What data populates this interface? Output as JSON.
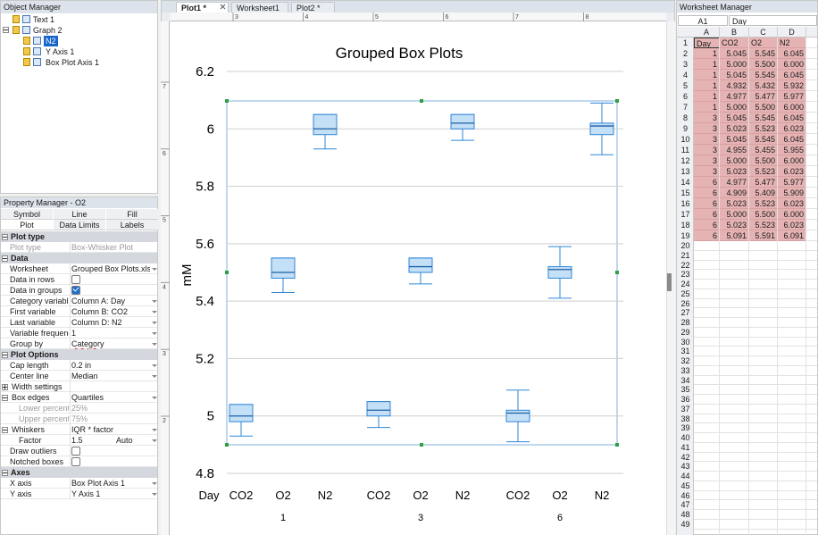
{
  "object_manager": {
    "title": "Object Manager",
    "items": [
      {
        "label": "Text 1"
      },
      {
        "label": "Graph 2",
        "children": [
          {
            "label": "N2",
            "selected": true
          },
          {
            "label": "Y Axis 1"
          },
          {
            "label": "Box Plot Axis 1"
          }
        ]
      }
    ]
  },
  "property_manager": {
    "title": "Property Manager - O2",
    "tabs": [
      [
        "Symbol",
        "Line",
        "Fill"
      ],
      [
        "Plot",
        "Data Limits",
        "Labels"
      ]
    ],
    "active_tab": "Plot",
    "sections": [
      {
        "title": "Plot type",
        "rows": [
          {
            "label": "Plot type",
            "value": "Box-Whisker Plot",
            "disabled": true
          }
        ]
      },
      {
        "title": "Data",
        "rows": [
          {
            "label": "Worksheet",
            "value": "Grouped Box Plots.xlsx!S..."
          },
          {
            "label": "Data in rows",
            "checked": false
          },
          {
            "label": "Data in groups",
            "checked": true
          },
          {
            "label": "Category variable",
            "value": "Column A: Day"
          },
          {
            "label": "First variable",
            "value": "Column B: CO2"
          },
          {
            "label": "Last variable",
            "value": "Column D: N2"
          },
          {
            "label": "Variable frequency",
            "value": "1"
          },
          {
            "label": "Group by",
            "value": "Category"
          }
        ]
      },
      {
        "title": "Plot Options",
        "rows": [
          {
            "label": "Cap length",
            "value": "0.2 in"
          },
          {
            "label": "Center line",
            "value": "Median"
          },
          {
            "label": "Width settings",
            "expanded": false
          },
          {
            "label": "Box edges",
            "value": "Quartiles",
            "expanded": true,
            "children": [
              {
                "label": "Lower percentile",
                "value": "25%",
                "disabled": true
              },
              {
                "label": "Upper percentile",
                "value": "75%",
                "disabled": true
              }
            ]
          },
          {
            "label": "Whiskers",
            "value": "IQR * factor",
            "expanded": true,
            "children": [
              {
                "label": "Factor",
                "value": "1.5",
                "extra": "Auto"
              }
            ]
          },
          {
            "label": "Draw outliers",
            "checked": false
          },
          {
            "label": "Notched boxes",
            "checked": false
          }
        ]
      },
      {
        "title": "Axes",
        "rows": [
          {
            "label": "X axis",
            "value": "Box Plot Axis 1"
          },
          {
            "label": "Y axis",
            "value": "Y Axis 1"
          }
        ]
      }
    ]
  },
  "document_tabs": [
    {
      "label": "Plot1 *",
      "active": true
    },
    {
      "label": "Worksheet1"
    },
    {
      "label": "Plot2 *"
    }
  ],
  "ruler_top": [
    "3",
    "4",
    "5",
    "6",
    "7",
    "8"
  ],
  "ruler_left": [
    "7",
    "6",
    "5",
    "4",
    "3",
    "2"
  ],
  "chart": {
    "type": "box",
    "title": "Grouped Box Plots",
    "y_label": "mM",
    "x_label": "Day",
    "ylim": [
      4.8,
      6.2
    ],
    "yticks": [
      4.8,
      5,
      5.2,
      5.4,
      5.6,
      5.8,
      6,
      6.2
    ],
    "grid": true,
    "color": "#2f86d6",
    "fill": "#c4e0f7",
    "categories": [
      "CO2",
      "O2",
      "N2"
    ],
    "groups": [
      {
        "label": "1",
        "boxes": [
          {
            "min": 4.93,
            "q1": 4.98,
            "median": 5.0,
            "q3": 5.04,
            "max": 5.04
          },
          {
            "min": 5.43,
            "q1": 5.48,
            "median": 5.5,
            "q3": 5.55,
            "max": 5.55
          },
          {
            "min": 5.93,
            "q1": 5.98,
            "median": 6.0,
            "q3": 6.05,
            "max": 6.05
          }
        ]
      },
      {
        "label": "3",
        "boxes": [
          {
            "min": 4.96,
            "q1": 5.0,
            "median": 5.02,
            "q3": 5.05,
            "max": 5.05
          },
          {
            "min": 5.46,
            "q1": 5.5,
            "median": 5.52,
            "q3": 5.55,
            "max": 5.55
          },
          {
            "min": 5.96,
            "q1": 6.0,
            "median": 6.02,
            "q3": 6.05,
            "max": 6.05
          }
        ]
      },
      {
        "label": "6",
        "boxes": [
          {
            "min": 4.91,
            "q1": 4.98,
            "median": 5.01,
            "q3": 5.02,
            "max": 5.09
          },
          {
            "min": 5.41,
            "q1": 5.48,
            "median": 5.51,
            "q3": 5.52,
            "max": 5.59
          },
          {
            "min": 5.91,
            "q1": 5.98,
            "median": 6.01,
            "q3": 6.02,
            "max": 6.09
          }
        ]
      }
    ]
  },
  "worksheet_manager": {
    "title": "Worksheet Manager",
    "cell_ref": "A1",
    "cell_content": "Day",
    "columns": [
      "A",
      "B",
      "C",
      "D"
    ],
    "row_numbers": [
      1,
      2,
      3,
      4,
      5,
      6,
      7,
      8,
      9,
      10,
      11,
      12,
      13,
      14,
      15,
      16,
      17,
      18,
      19,
      20,
      21,
      22,
      23,
      24,
      25,
      26,
      27,
      28,
      29,
      30,
      31,
      32,
      33,
      34,
      35,
      36,
      37,
      38,
      39,
      40,
      41,
      42,
      43,
      44,
      45,
      46,
      47,
      48,
      49
    ],
    "cells": [
      [
        "Day",
        "CO2",
        "O2",
        "N2"
      ],
      [
        "1",
        "5.045",
        "5.545",
        "6.045"
      ],
      [
        "1",
        "5.000",
        "5.500",
        "6.000"
      ],
      [
        "1",
        "5.045",
        "5.545",
        "6.045"
      ],
      [
        "1",
        "4.932",
        "5.432",
        "5.932"
      ],
      [
        "1",
        "4.977",
        "5.477",
        "5.977"
      ],
      [
        "1",
        "5.000",
        "5.500",
        "6.000"
      ],
      [
        "3",
        "5.045",
        "5.545",
        "6.045"
      ],
      [
        "3",
        "5.023",
        "5.523",
        "6.023"
      ],
      [
        "3",
        "5.045",
        "5.545",
        "6.045"
      ],
      [
        "3",
        "4.955",
        "5.455",
        "5.955"
      ],
      [
        "3",
        "5.000",
        "5.500",
        "6.000"
      ],
      [
        "3",
        "5.023",
        "5.523",
        "6.023"
      ],
      [
        "6",
        "4.977",
        "5.477",
        "5.977"
      ],
      [
        "6",
        "4.909",
        "5.409",
        "5.909"
      ],
      [
        "6",
        "5.023",
        "5.523",
        "6.023"
      ],
      [
        "6",
        "5.000",
        "5.500",
        "6.000"
      ],
      [
        "6",
        "5.023",
        "5.523",
        "6.023"
      ],
      [
        "6",
        "5.091",
        "5.591",
        "6.091"
      ]
    ]
  }
}
